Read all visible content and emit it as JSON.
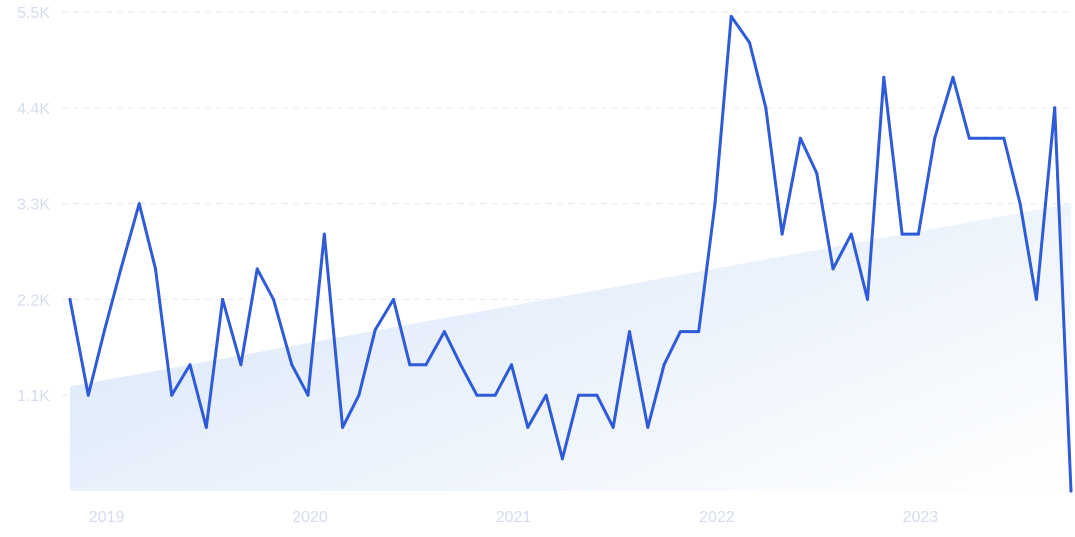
{
  "chart_data": {
    "type": "line",
    "title": "",
    "xlabel": "",
    "ylabel": "",
    "y_ticks": [
      "5.5K",
      "4.4K",
      "3.3K",
      "2.2K",
      "1.1K"
    ],
    "y_tick_values": [
      5500,
      4400,
      3300,
      2200,
      1100
    ],
    "x_ticks": [
      "2019",
      "2020",
      "2021",
      "2022",
      "2023"
    ],
    "x_tick_values": [
      2019.0,
      2020.0,
      2021.0,
      2022.0,
      2023.0
    ],
    "xlim": [
      2018.83,
      2023.75
    ],
    "ylim": [
      0,
      5500
    ],
    "grid": true,
    "series": [
      {
        "x": [
          2018.83,
          2018.92,
          2019.0,
          2019.08,
          2019.17,
          2019.25,
          2019.33,
          2019.42,
          2019.5,
          2019.58,
          2019.67,
          2019.75,
          2019.83,
          2019.92,
          2020.0,
          2020.08,
          2020.17,
          2020.25,
          2020.33,
          2020.42,
          2020.5,
          2020.58,
          2020.67,
          2020.75,
          2020.83,
          2020.92,
          2021.0,
          2021.08,
          2021.17,
          2021.25,
          2021.33,
          2021.42,
          2021.5,
          2021.58,
          2021.67,
          2021.75,
          2021.83,
          2021.92,
          2022.0,
          2022.08,
          2022.17,
          2022.25,
          2022.33,
          2022.42,
          2022.5,
          2022.58,
          2022.67,
          2022.75,
          2022.83,
          2022.92,
          2023.0,
          2023.08,
          2023.17,
          2023.25,
          2023.33,
          2023.42,
          2023.5,
          2023.58,
          2023.67,
          2023.75
        ],
        "values": [
          2200,
          1100,
          1850,
          2550,
          3300,
          2550,
          1100,
          1450,
          730,
          2200,
          1450,
          2550,
          2200,
          1450,
          1100,
          2950,
          730,
          1100,
          1850,
          2200,
          1450,
          1450,
          1830,
          1450,
          1100,
          1100,
          1450,
          730,
          1100,
          370,
          1100,
          1100,
          730,
          1830,
          730,
          1450,
          1830,
          1830,
          3300,
          5450,
          5150,
          4400,
          2950,
          4050,
          3650,
          2550,
          2950,
          2200,
          4750,
          2950,
          2950,
          4050,
          4750,
          4050,
          4050,
          4050,
          3300,
          2200,
          4400,
          0
        ]
      }
    ],
    "trend": {
      "start": 1200,
      "end": 3300
    },
    "colors": {
      "line": "#2f5bd9",
      "area_start": "#dbe8f9",
      "area_end": "#ffffff",
      "grid": "#e6eaf2",
      "tick_text": "#d4dcf0"
    }
  }
}
